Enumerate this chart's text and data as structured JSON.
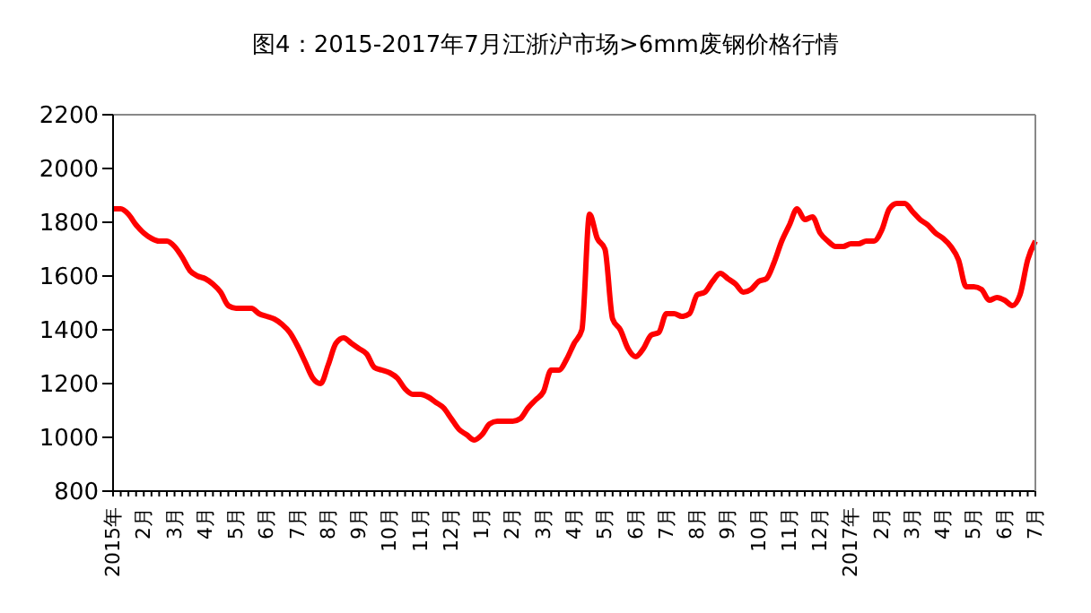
{
  "chart_data": {
    "type": "line",
    "title": "图4：2015-2017年7月江浙沪市场>6mm废钢价格行情",
    "categories": [
      "2015年",
      null,
      null,
      null,
      "2月",
      null,
      null,
      null,
      "3月",
      null,
      null,
      null,
      "4月",
      null,
      null,
      null,
      "5月",
      null,
      null,
      null,
      "6月",
      null,
      null,
      null,
      "7月",
      null,
      null,
      null,
      "8月",
      null,
      null,
      null,
      "9月",
      null,
      null,
      null,
      "10月",
      null,
      null,
      null,
      "11月",
      null,
      null,
      null,
      "12月",
      null,
      null,
      null,
      "1月",
      null,
      null,
      null,
      "2月",
      null,
      null,
      null,
      "3月",
      null,
      null,
      null,
      "4月",
      null,
      null,
      null,
      "5月",
      null,
      null,
      null,
      "6月",
      null,
      null,
      null,
      "7月",
      null,
      null,
      null,
      "8月",
      null,
      null,
      null,
      "9月",
      null,
      null,
      null,
      "10月",
      null,
      null,
      null,
      "11月",
      null,
      null,
      null,
      "12月",
      null,
      null,
      null,
      "2017年",
      null,
      null,
      null,
      "2月",
      null,
      null,
      null,
      "3月",
      null,
      null,
      null,
      "4月",
      null,
      null,
      null,
      "5月",
      null,
      null,
      null,
      "6月",
      null,
      null,
      null,
      "7月"
    ],
    "series": [
      {
        "color": "#ff0000",
        "values": [
          1850,
          1850,
          1830,
          1790,
          1760,
          1740,
          1730,
          1730,
          1710,
          1670,
          1620,
          1600,
          1590,
          1570,
          1540,
          1490,
          1480,
          1480,
          1480,
          1460,
          1450,
          1440,
          1420,
          1390,
          1340,
          1280,
          1220,
          1200,
          1270,
          1350,
          1370,
          1350,
          1330,
          1310,
          1260,
          1250,
          1240,
          1220,
          1180,
          1160,
          1160,
          1150,
          1130,
          1110,
          1070,
          1030,
          1010,
          990,
          1010,
          1050,
          1060,
          1060,
          1060,
          1070,
          1110,
          1140,
          1170,
          1250,
          1250,
          1290,
          1350,
          1400,
          1830,
          1740,
          1700,
          1440,
          1400,
          1330,
          1300,
          1330,
          1380,
          1390,
          1460,
          1460,
          1450,
          1460,
          1530,
          1540,
          1580,
          1610,
          1590,
          1570,
          1540,
          1550,
          1580,
          1590,
          1650,
          1730,
          1790,
          1850,
          1810,
          1820,
          1760,
          1730,
          1710,
          1710,
          1720,
          1720,
          1730,
          1730,
          1770,
          1850,
          1870,
          1870,
          1840,
          1810,
          1790,
          1760,
          1740,
          1710,
          1660,
          1560,
          1560,
          1550,
          1510,
          1520,
          1510,
          1490,
          1530,
          1660,
          1730
        ]
      }
    ],
    "ylim": [
      800,
      2200
    ],
    "yticks": [
      800,
      1000,
      1200,
      1400,
      1600,
      1800,
      2000,
      2200
    ],
    "grid": false,
    "legend": false,
    "line_style": "solid"
  }
}
